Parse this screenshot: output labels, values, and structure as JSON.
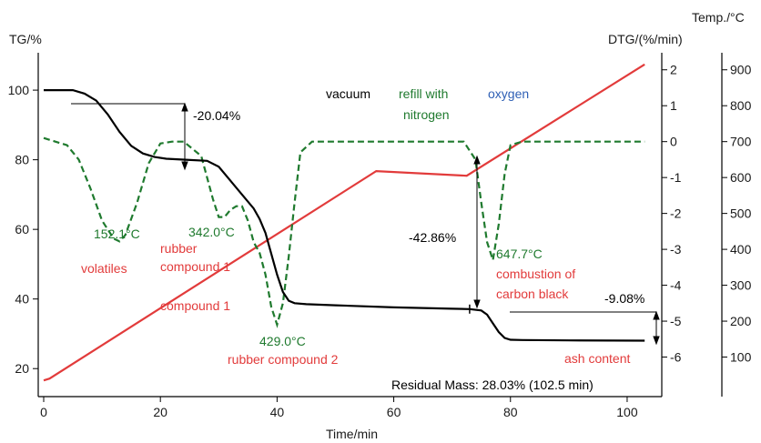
{
  "chart_data": {
    "type": "line",
    "axes": {
      "tg_label": "TG/%",
      "dtg_label": "DTG/(%/min)",
      "temp_label": "Temp./°C",
      "x_label": "Time/min",
      "x_ticks": [
        "0",
        "20",
        "40",
        "60",
        "80",
        "100"
      ],
      "tg_ticks": [
        "20",
        "40",
        "60",
        "80",
        "100"
      ],
      "dtg_ticks": [
        "2",
        "1",
        "0",
        "-1",
        "-2",
        "-3",
        "-4",
        "-5",
        "-6"
      ],
      "temp_ticks": [
        "900",
        "800",
        "700",
        "600",
        "500",
        "400",
        "300",
        "200",
        "100"
      ],
      "xlim": [
        0,
        105
      ],
      "tg_ylim": [
        13,
        111
      ],
      "dtg_ylim": [
        -7,
        2.5
      ],
      "temp_ylim": [
        -7,
        2.5
      ]
    },
    "colors": {
      "tg": "#000000",
      "dtg": "#1f7a2e",
      "temp": "#e23b3b",
      "oxygen": "#2e5fb5"
    },
    "series": [
      {
        "key": "tg",
        "x": [
          0,
          5,
          7,
          9,
          11,
          13,
          15,
          17,
          19,
          21,
          24,
          28,
          30,
          32,
          34,
          36,
          37,
          38,
          39,
          40,
          41,
          42,
          43,
          45,
          50,
          60,
          70,
          73,
          75,
          76,
          77,
          78,
          79,
          80,
          82,
          90,
          103
        ],
        "y": [
          100,
          100,
          99,
          97,
          93,
          88,
          84,
          81.8,
          80.8,
          80.3,
          80.04,
          79.7,
          78,
          74,
          70,
          66,
          63,
          59,
          53,
          47,
          42,
          39.5,
          38.8,
          38.5,
          38.2,
          37.6,
          37.2,
          37.1,
          36.7,
          35.5,
          33,
          30.5,
          28.8,
          28.3,
          28.2,
          28.1,
          28.03
        ]
      },
      {
        "key": "dtg",
        "x": [
          0,
          2,
          4,
          6,
          8,
          10,
          12,
          13,
          14,
          16,
          18,
          20,
          22,
          24,
          27,
          29,
          30,
          31,
          32,
          33,
          34,
          35,
          36,
          37,
          38,
          39,
          40,
          41,
          42,
          43,
          44,
          46,
          50,
          60,
          70,
          72,
          74,
          75,
          76,
          77,
          78,
          79,
          80,
          82,
          90,
          103
        ],
        "y": [
          0.1,
          0,
          -0.1,
          -0.5,
          -1.3,
          -2.2,
          -2.7,
          -2.78,
          -2.6,
          -1.7,
          -0.6,
          -0.05,
          0,
          0,
          -0.4,
          -1.6,
          -2.1,
          -2.1,
          -1.9,
          -1.8,
          -1.8,
          -2.2,
          -2.8,
          -3.1,
          -3.7,
          -4.6,
          -5.1,
          -4.5,
          -3.2,
          -1.7,
          -0.3,
          0,
          0,
          0,
          0,
          0,
          -0.5,
          -1.7,
          -2.8,
          -3.3,
          -2.3,
          -0.9,
          -0.1,
          0,
          0,
          0
        ]
      },
      {
        "key": "temp",
        "x": [
          0,
          1,
          57,
          72.5,
          103
        ],
        "y": [
          -6.65,
          -6.6,
          -0.82,
          -0.95,
          2.15
        ]
      }
    ],
    "annotations": {
      "step1": "-20.04%",
      "step2": "-42.86%",
      "step3": "-9.08%",
      "peak1": "152.1°C",
      "peak2": "342.0°C",
      "peak3": "429.0°C",
      "peak4": "647.7°C",
      "volatiles": "volatiles",
      "rubber1_a": "rubber",
      "rubber1_b": "compound 1",
      "compound1": "compound 1",
      "rubber2": "rubber compound 2",
      "combustion_a": "combustion of",
      "combustion_b": "carbon black",
      "ash": "ash content",
      "vacuum": "vacuum",
      "refill_a": "refill with",
      "refill_b": "nitrogen",
      "oxygen": "oxygen",
      "residual": "Residual Mass: 28.03% (102.5 min)"
    }
  }
}
